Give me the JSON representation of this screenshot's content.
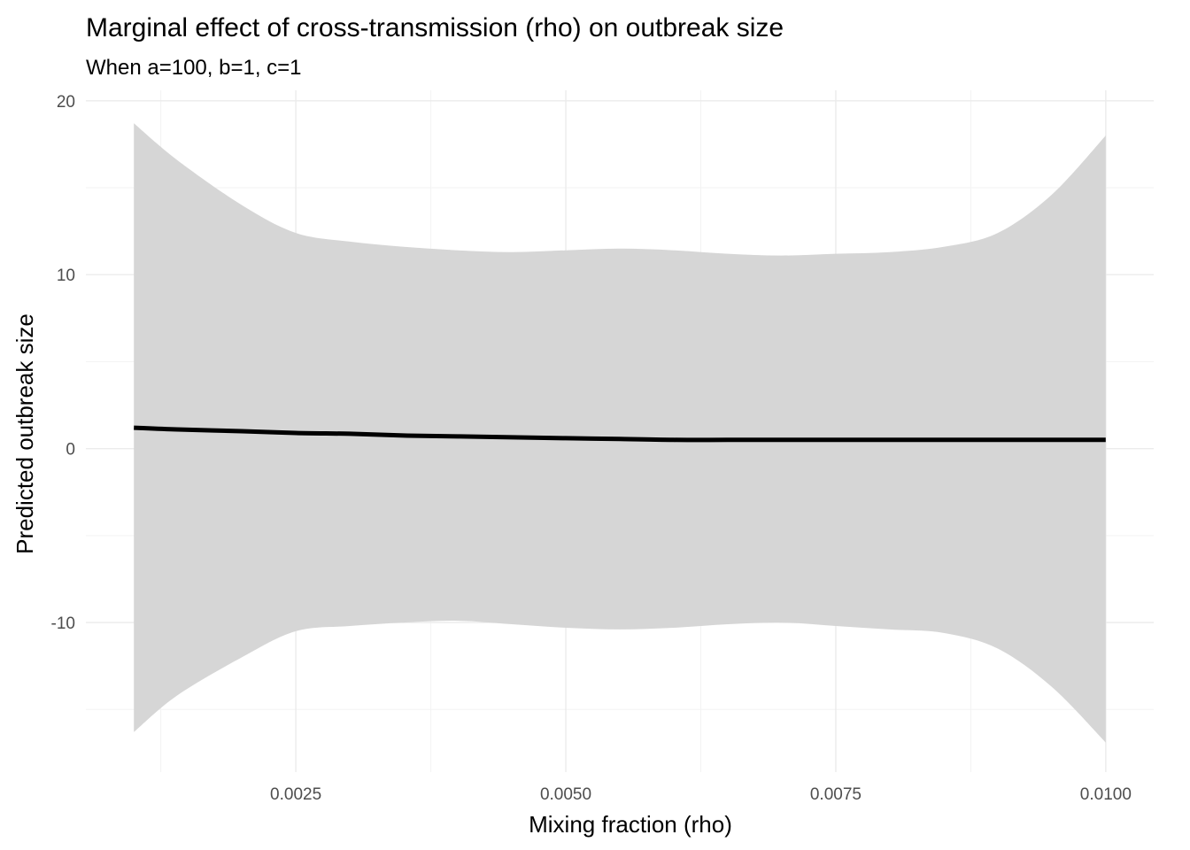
{
  "chart_data": {
    "type": "line",
    "title": "Marginal effect of cross-transmission (rho) on outbreak size",
    "subtitle": "When a=100, b=1, c=1",
    "xlabel": "Mixing fraction (rho)",
    "ylabel": "Predicted outbreak size",
    "xlim": [
      0.000556,
      0.010444
    ],
    "ylim": [
      -18.6,
      20.6
    ],
    "x_ticks": [
      0.0025,
      0.005,
      0.0075,
      0.01
    ],
    "x_tick_labels": [
      "0.0025",
      "0.0050",
      "0.0075",
      "0.0100"
    ],
    "x_minor": [
      0.00125,
      0.00375,
      0.00625,
      0.00875
    ],
    "y_ticks": [
      -10,
      0,
      10,
      20
    ],
    "y_tick_labels": [
      "-10",
      "0",
      "10",
      "20"
    ],
    "y_minor": [
      -15,
      -5,
      5,
      15
    ],
    "grid": true,
    "series": [
      {
        "name": "predicted",
        "x": [
          0.001,
          0.0014,
          0.002,
          0.0025,
          0.003,
          0.0035,
          0.004,
          0.0045,
          0.005,
          0.0055,
          0.006,
          0.0065,
          0.007,
          0.0075,
          0.008,
          0.0085,
          0.009,
          0.0095,
          0.01
        ],
        "y": [
          1.2,
          1.1,
          1.0,
          0.9,
          0.85,
          0.75,
          0.7,
          0.65,
          0.6,
          0.55,
          0.5,
          0.5,
          0.5,
          0.5,
          0.5,
          0.5,
          0.5,
          0.5,
          0.5
        ],
        "lower": [
          -16.3,
          -14.2,
          -12.0,
          -10.5,
          -10.2,
          -10.0,
          -9.9,
          -10.1,
          -10.3,
          -10.4,
          -10.3,
          -10.1,
          -10.0,
          -10.2,
          -10.4,
          -10.6,
          -11.5,
          -13.7,
          -16.9
        ],
        "upper": [
          18.7,
          16.6,
          14.0,
          12.4,
          11.9,
          11.6,
          11.4,
          11.3,
          11.4,
          11.5,
          11.4,
          11.2,
          11.1,
          11.2,
          11.3,
          11.6,
          12.4,
          14.6,
          18.0
        ]
      }
    ]
  }
}
